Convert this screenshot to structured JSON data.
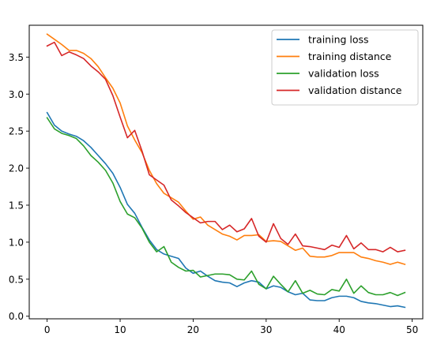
{
  "chart_data": {
    "type": "line",
    "title": "",
    "xlabel": "",
    "ylabel": "",
    "xlim": [
      -2.45,
      51.45
    ],
    "ylim": [
      -0.035,
      3.93
    ],
    "xticks": [
      0,
      10,
      20,
      30,
      40,
      50
    ],
    "yticks": [
      0.0,
      0.5,
      1.0,
      1.5,
      2.0,
      2.5,
      3.0,
      3.5
    ],
    "xtick_labels": [
      "0",
      "10",
      "20",
      "30",
      "40",
      "50"
    ],
    "ytick_labels": [
      "0.0",
      "0.5",
      "1.0",
      "1.5",
      "2.0",
      "2.5",
      "3.0",
      "3.5"
    ],
    "grid": false,
    "legend_position": "top-right",
    "x": [
      0,
      1,
      2,
      3,
      4,
      5,
      6,
      7,
      8,
      9,
      10,
      11,
      12,
      13,
      14,
      15,
      16,
      17,
      18,
      19,
      20,
      21,
      22,
      23,
      24,
      25,
      26,
      27,
      28,
      29,
      30,
      31,
      32,
      33,
      34,
      35,
      36,
      37,
      38,
      39,
      40,
      41,
      42,
      43,
      44,
      45,
      46,
      47,
      48,
      49
    ],
    "series": [
      {
        "name": "training loss",
        "color": "#1f77b4",
        "values": [
          2.75,
          2.58,
          2.5,
          2.46,
          2.43,
          2.37,
          2.28,
          2.17,
          2.06,
          1.93,
          1.74,
          1.51,
          1.39,
          1.2,
          1.03,
          0.9,
          0.84,
          0.81,
          0.78,
          0.65,
          0.58,
          0.61,
          0.54,
          0.48,
          0.46,
          0.45,
          0.4,
          0.45,
          0.48,
          0.46,
          0.37,
          0.41,
          0.39,
          0.33,
          0.29,
          0.31,
          0.22,
          0.21,
          0.21,
          0.25,
          0.27,
          0.27,
          0.25,
          0.2,
          0.18,
          0.17,
          0.15,
          0.13,
          0.14,
          0.12
        ]
      },
      {
        "name": "training distance",
        "color": "#ff7f0e",
        "values": [
          3.81,
          3.74,
          3.67,
          3.59,
          3.59,
          3.55,
          3.48,
          3.37,
          3.22,
          3.08,
          2.88,
          2.57,
          2.38,
          2.21,
          1.97,
          1.79,
          1.66,
          1.6,
          1.54,
          1.42,
          1.31,
          1.34,
          1.23,
          1.17,
          1.11,
          1.08,
          1.03,
          1.09,
          1.09,
          1.1,
          1.01,
          1.02,
          1.01,
          0.95,
          0.89,
          0.92,
          0.81,
          0.8,
          0.8,
          0.82,
          0.86,
          0.86,
          0.86,
          0.8,
          0.78,
          0.75,
          0.73,
          0.7,
          0.73,
          0.7
        ]
      },
      {
        "name": "validation loss",
        "color": "#2ca02c",
        "values": [
          2.68,
          2.53,
          2.47,
          2.44,
          2.4,
          2.3,
          2.17,
          2.08,
          1.97,
          1.8,
          1.55,
          1.38,
          1.33,
          1.19,
          1.0,
          0.87,
          0.94,
          0.73,
          0.66,
          0.61,
          0.62,
          0.53,
          0.55,
          0.57,
          0.57,
          0.56,
          0.5,
          0.49,
          0.61,
          0.43,
          0.37,
          0.54,
          0.43,
          0.33,
          0.48,
          0.31,
          0.35,
          0.3,
          0.29,
          0.36,
          0.34,
          0.5,
          0.31,
          0.41,
          0.32,
          0.29,
          0.29,
          0.32,
          0.28,
          0.32
        ]
      },
      {
        "name": "validation distance",
        "color": "#d62728",
        "values": [
          3.65,
          3.7,
          3.52,
          3.57,
          3.53,
          3.48,
          3.38,
          3.3,
          3.2,
          2.98,
          2.69,
          2.41,
          2.51,
          2.23,
          1.91,
          1.84,
          1.77,
          1.57,
          1.49,
          1.4,
          1.33,
          1.26,
          1.28,
          1.28,
          1.17,
          1.23,
          1.14,
          1.18,
          1.32,
          1.08,
          1.0,
          1.25,
          1.05,
          0.97,
          1.11,
          0.95,
          0.94,
          0.92,
          0.9,
          0.96,
          0.93,
          1.09,
          0.91,
          0.99,
          0.9,
          0.9,
          0.87,
          0.93,
          0.87,
          0.89
        ]
      }
    ]
  }
}
